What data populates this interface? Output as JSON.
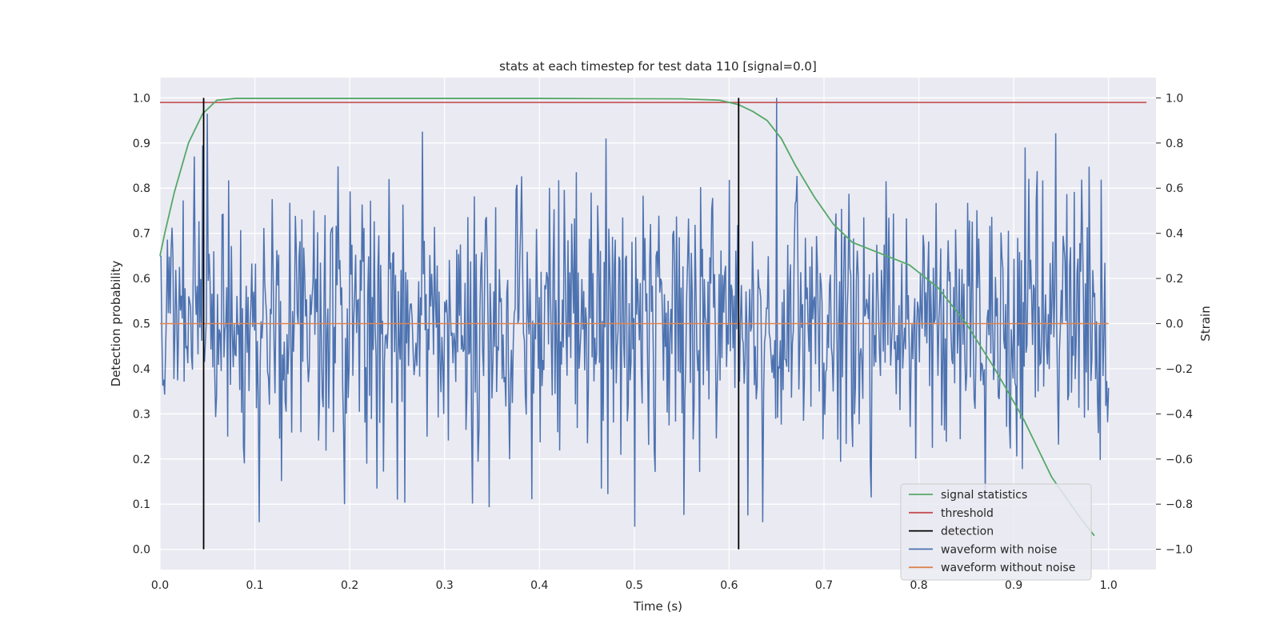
{
  "chart_data": {
    "type": "line",
    "title": "stats at each timestep for test data 110 [signal=0.0]",
    "xlabel": "Time (s)",
    "ylabel": "Detection probability",
    "y2label": "Strain",
    "xlim": [
      0.0,
      1.05
    ],
    "ylim": [
      -0.045,
      1.045
    ],
    "y2lim": [
      -1.0,
      1.0
    ],
    "grid": true,
    "background": "#eaeaf2",
    "legend_position": "lower right",
    "xticks": [
      "0.0",
      "0.1",
      "0.2",
      "0.3",
      "0.4",
      "0.5",
      "0.6",
      "0.7",
      "0.8",
      "0.9",
      "1.0"
    ],
    "yticks": [
      "0.0",
      "0.1",
      "0.2",
      "0.3",
      "0.4",
      "0.5",
      "0.6",
      "0.7",
      "0.8",
      "0.9",
      "1.0"
    ],
    "y2ticks": [
      "−1.0",
      "−0.8",
      "−0.6",
      "−0.4",
      "−0.2",
      "0.0",
      "0.2",
      "0.4",
      "0.6",
      "0.8",
      "1.0"
    ],
    "series": [
      {
        "name": "signal statistics",
        "color": "#55a868",
        "axis": "left",
        "x": [
          0.0,
          0.005,
          0.015,
          0.03,
          0.045,
          0.06,
          0.08,
          0.2,
          0.4,
          0.55,
          0.59,
          0.61,
          0.625,
          0.64,
          0.655,
          0.67,
          0.69,
          0.71,
          0.73,
          0.76,
          0.79,
          0.82,
          0.85,
          0.88,
          0.91,
          0.94,
          0.97,
          0.985
        ],
        "y": [
          0.65,
          0.7,
          0.79,
          0.9,
          0.965,
          0.995,
          0.999,
          0.999,
          0.999,
          0.998,
          0.995,
          0.985,
          0.97,
          0.95,
          0.91,
          0.85,
          0.78,
          0.72,
          0.68,
          0.655,
          0.63,
          0.58,
          0.5,
          0.4,
          0.29,
          0.16,
          0.07,
          0.03
        ]
      },
      {
        "name": "threshold",
        "color": "#c44e52",
        "axis": "left",
        "x": [
          0.0,
          1.04
        ],
        "y": [
          0.99,
          0.99
        ]
      },
      {
        "name": "detection",
        "color": "#000000",
        "axis": "left",
        "segments": [
          {
            "x": 0.046,
            "y": [
              0.0,
              1.0
            ]
          },
          {
            "x": 0.61,
            "y": [
              0.0,
              1.0
            ]
          }
        ]
      },
      {
        "name": "waveform with noise",
        "color": "#4c72b0",
        "axis": "right",
        "x_start": 0.0,
        "x_end": 1.0,
        "count": 1024,
        "amplitude_std": 0.3,
        "x_annotated": [
          0.0,
          0.045,
          0.105,
          0.195,
          0.25,
          0.47,
          0.5,
          0.62,
          0.635,
          0.65,
          0.75,
          0.87
        ],
        "y_annotated": [
          0.3,
          0.79,
          -0.88,
          -0.8,
          -0.78,
          0.82,
          -0.9,
          -0.85,
          -0.88,
          1.0,
          -0.77,
          -0.78
        ]
      },
      {
        "name": "waveform without noise",
        "color": "#dd8452",
        "axis": "right",
        "x": [
          0.0,
          1.0
        ],
        "y": [
          0.0,
          0.0
        ]
      }
    ]
  }
}
